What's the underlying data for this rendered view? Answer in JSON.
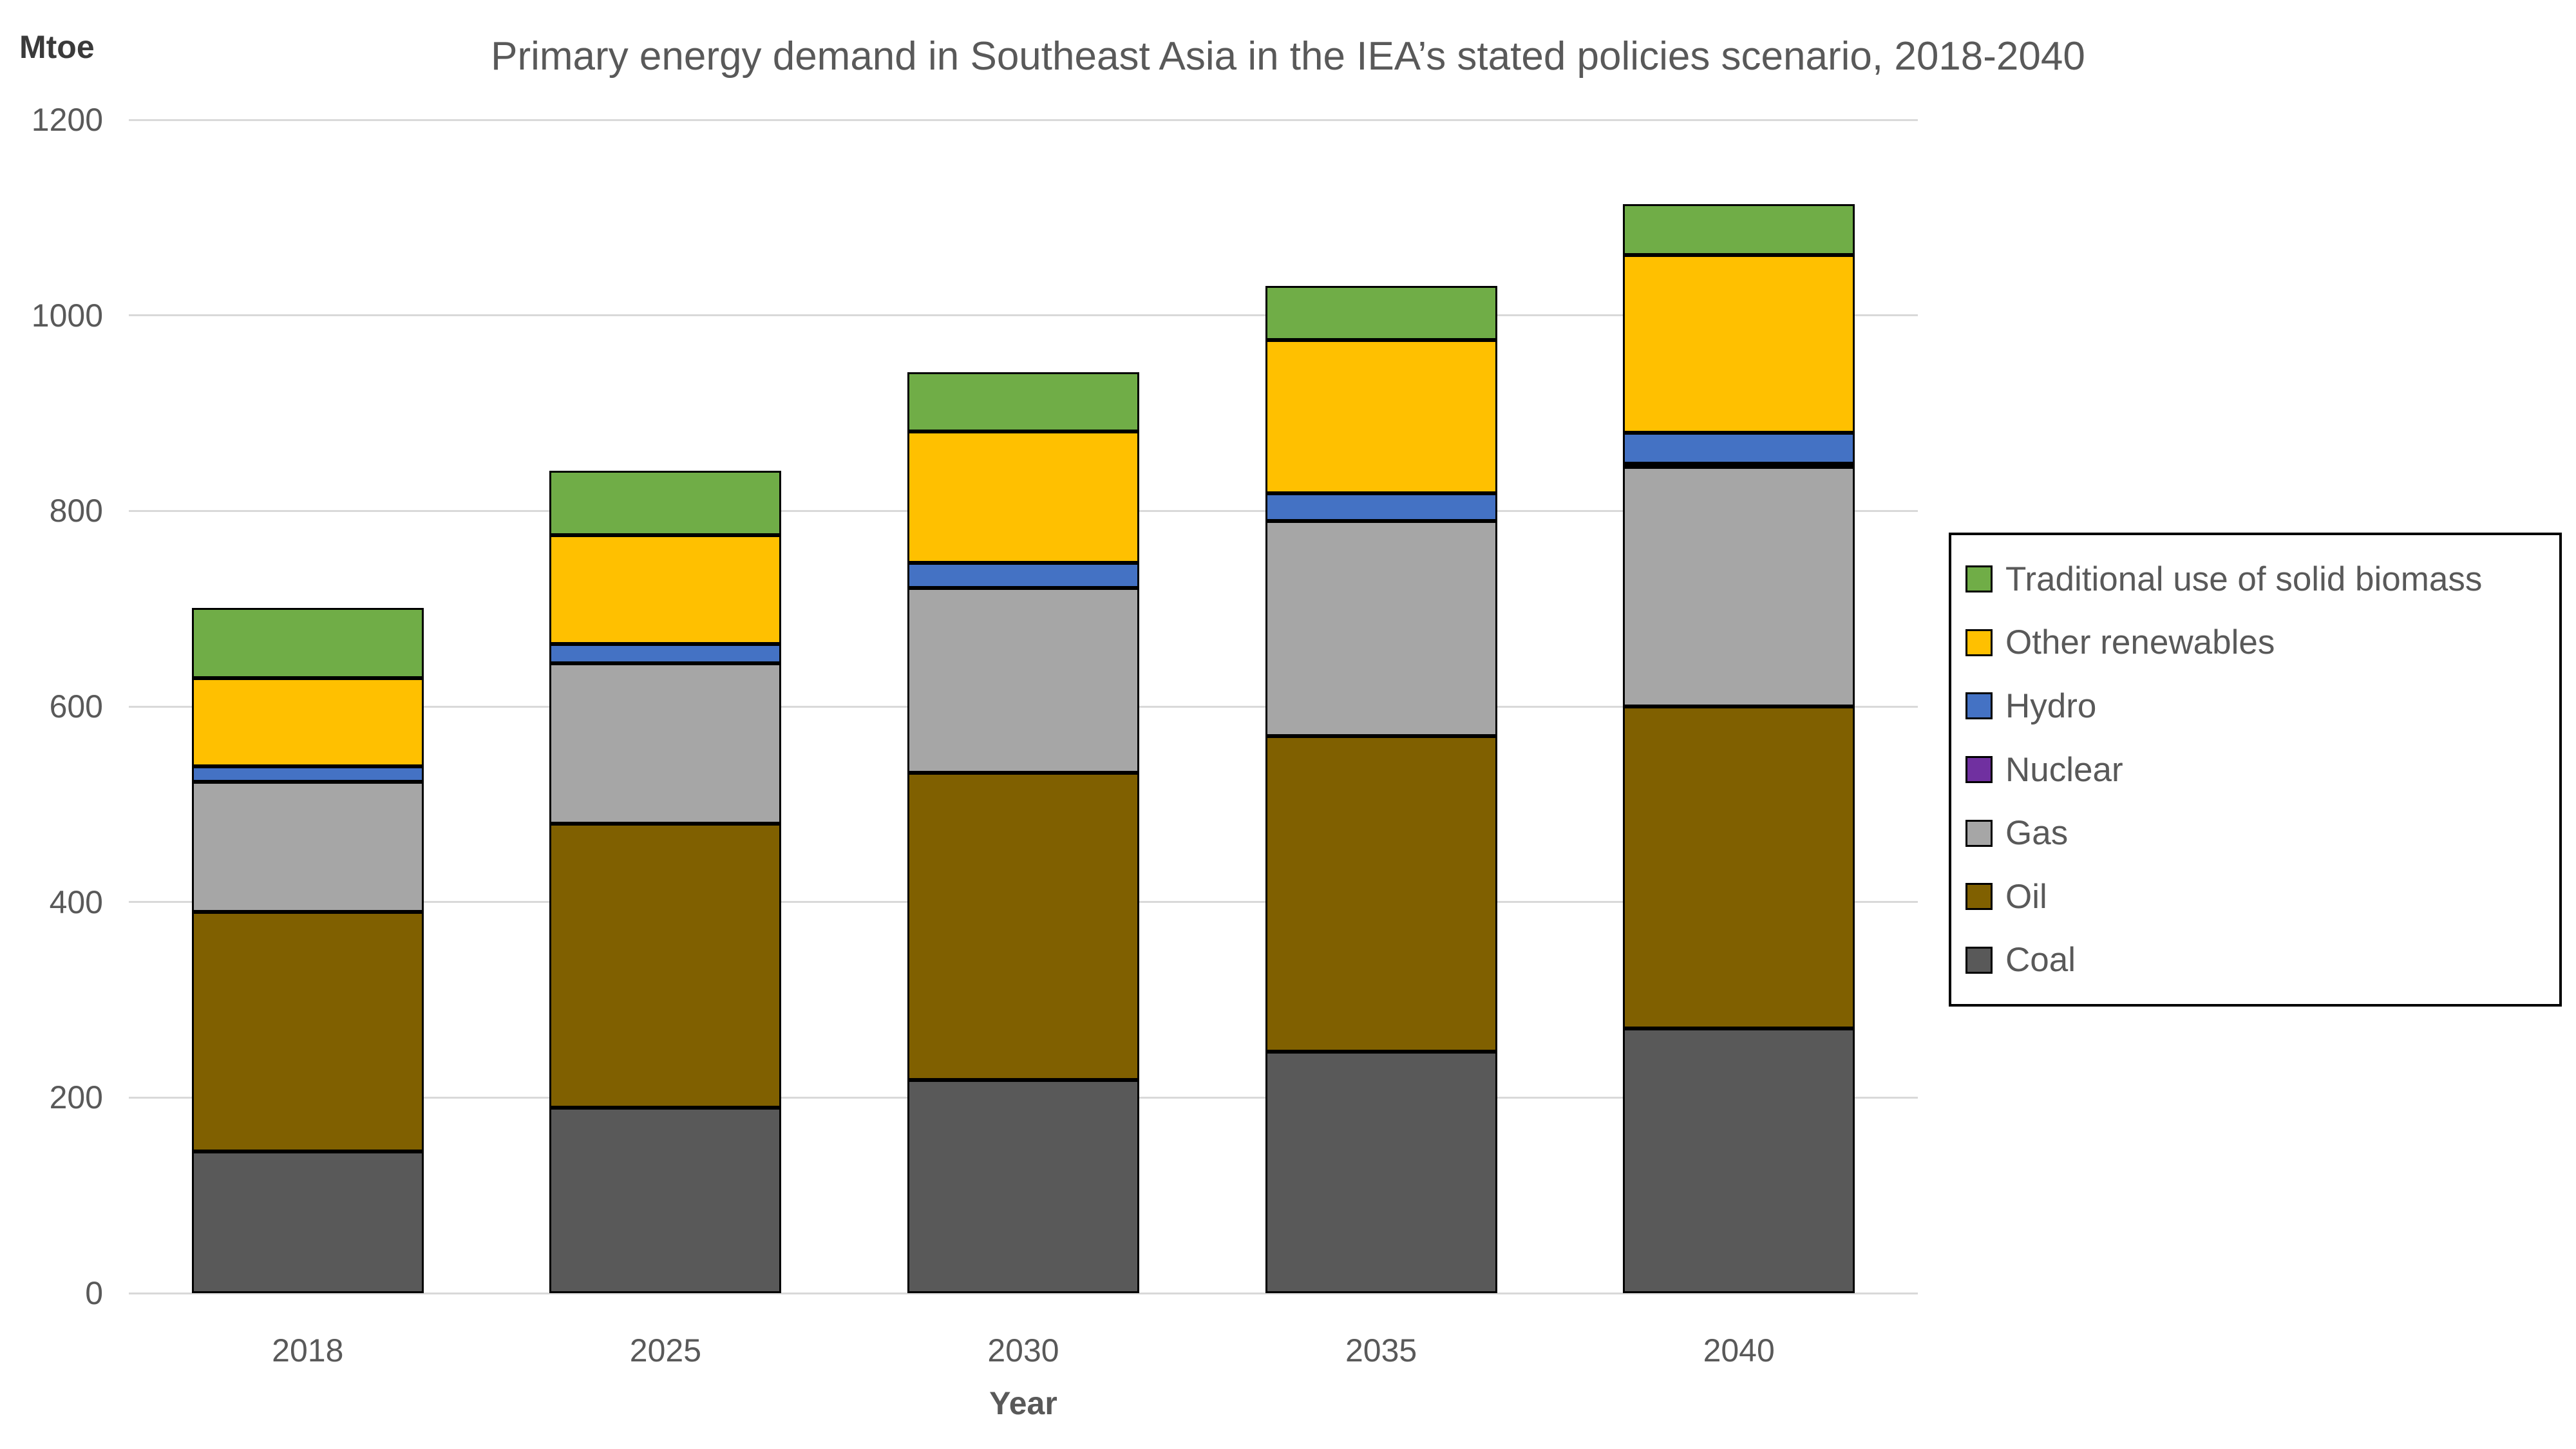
{
  "title": "Primary energy demand in Southeast Asia in the IEA’s stated policies scenario, 2018-2040",
  "y_axis": {
    "unit_label": "Mtoe",
    "ticks": [
      0,
      200,
      400,
      600,
      800,
      1000,
      1200
    ],
    "max": 1200
  },
  "x_axis": {
    "label": "Year",
    "categories": [
      "2018",
      "2025",
      "2030",
      "2035",
      "2040"
    ]
  },
  "legend": {
    "position": "right",
    "order_top_to_bottom": [
      "Traditional use of solid biomass",
      "Other renewables",
      "Hydro",
      "Nuclear",
      "Gas",
      "Oil",
      "Coal"
    ]
  },
  "chart_data": {
    "type": "bar",
    "stacked": true,
    "title": "Primary energy demand in Southeast Asia in the IEA’s stated policies scenario, 2018-2040",
    "xlabel": "Year",
    "ylabel": "Mtoe",
    "ylim": [
      0,
      1200
    ],
    "grid": true,
    "legend_position": "right",
    "categories": [
      "2018",
      "2025",
      "2030",
      "2035",
      "2040"
    ],
    "series": [
      {
        "name": "Coal",
        "color": "#595959",
        "values": [
          145,
          190,
          218,
          247,
          271
        ]
      },
      {
        "name": "Oil",
        "color": "#806000",
        "values": [
          245,
          290,
          314,
          323,
          329
        ]
      },
      {
        "name": "Gas",
        "color": "#a6a6a6",
        "values": [
          133,
          164,
          189,
          220,
          245
        ]
      },
      {
        "name": "Nuclear",
        "color": "#7030a0",
        "values": [
          0,
          0,
          0,
          0,
          3
        ]
      },
      {
        "name": "Hydro",
        "color": "#4472c4",
        "values": [
          16,
          20,
          26,
          28,
          32
        ]
      },
      {
        "name": "Other renewables",
        "color": "#ffc000",
        "values": [
          90,
          111,
          134,
          157,
          182
        ]
      },
      {
        "name": "Traditional use of solid biomass",
        "color": "#70ad47",
        "values": [
          72,
          66,
          61,
          55,
          52
        ]
      }
    ],
    "totals": [
      701,
      841,
      942,
      1030,
      1114
    ]
  }
}
